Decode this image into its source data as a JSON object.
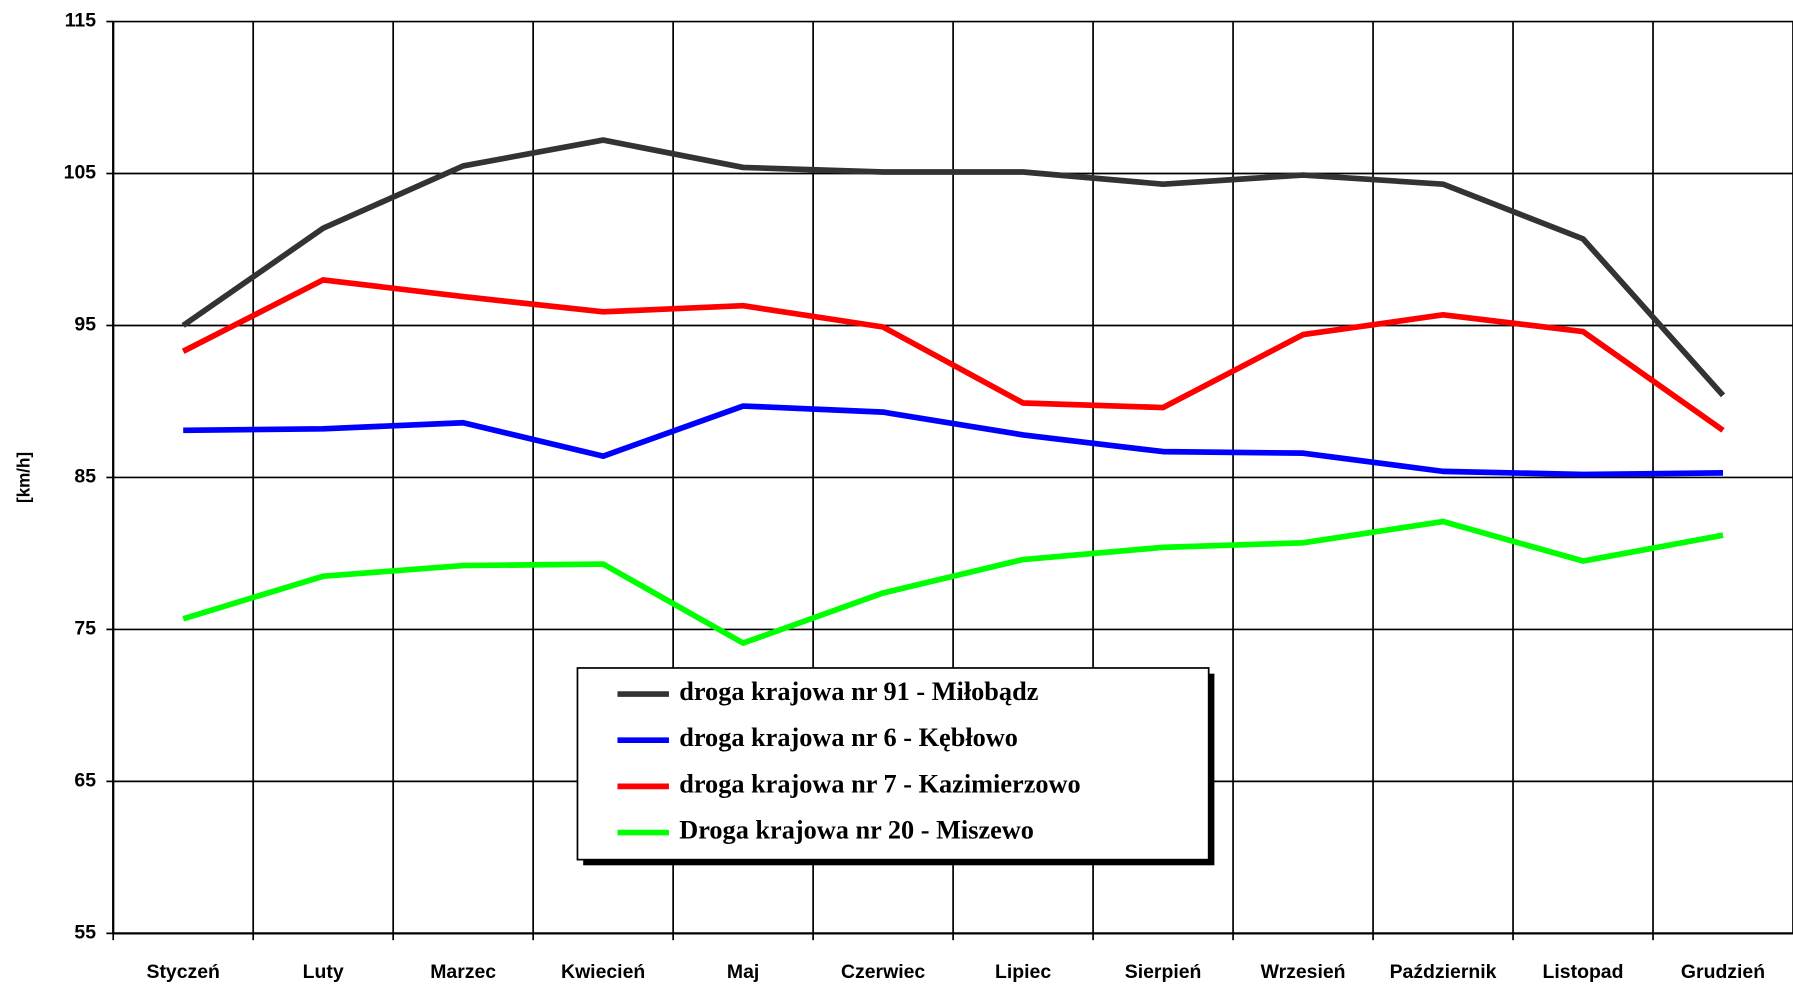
{
  "chart_data": {
    "type": "line",
    "y_label": "[km/h]",
    "categories": [
      "Styczeń",
      "Luty",
      "Marzec",
      "Kwiecień",
      "Maj",
      "Czerwiec",
      "Lipiec",
      "Sierpień",
      "Wrzesień",
      "Październik",
      "Listopad",
      "Grudzień"
    ],
    "series": [
      {
        "name": "droga krajowa nr 91 - Miłobądz",
        "color": "#333333",
        "values": [
          95.0,
          101.4,
          105.5,
          107.2,
          105.4,
          105.1,
          105.1,
          104.3,
          104.9,
          104.3,
          100.7,
          90.4
        ]
      },
      {
        "name": "droga krajowa nr 6 - Kębłowo",
        "color": "#0000ff",
        "values": [
          88.1,
          88.2,
          88.6,
          86.4,
          89.7,
          89.3,
          87.8,
          86.7,
          86.6,
          85.4,
          85.2,
          85.3
        ]
      },
      {
        "name": "droga krajowa nr 7 -  Kazimierzowo",
        "color": "#ff0000",
        "values": [
          93.3,
          98.0,
          96.9,
          95.9,
          96.3,
          94.9,
          89.9,
          89.6,
          94.4,
          95.7,
          94.6,
          88.1
        ]
      },
      {
        "name": "Droga krajowa nr 20 - Miszewo",
        "color": "#00ff00",
        "values": [
          75.7,
          78.5,
          79.2,
          79.3,
          74.1,
          77.4,
          79.6,
          80.4,
          80.7,
          82.1,
          79.5,
          81.2
        ]
      }
    ],
    "ylim": [
      55,
      115
    ],
    "yticks": [
      55,
      65,
      75,
      85,
      95,
      105,
      115
    ],
    "grid": true,
    "legend": "bottom-center"
  }
}
